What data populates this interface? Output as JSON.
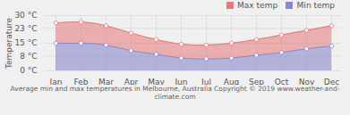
{
  "chart_data": {
    "type": "area",
    "caption": "Average min and max temperatures in Melbourne, Australia   Copyright © 2019 www.weather-and-climate.com",
    "ylabel": "Temperature",
    "categories": [
      "Jan",
      "Feb",
      "Mar",
      "Apr",
      "May",
      "Jun",
      "Jul",
      "Aug",
      "Sep",
      "Oct",
      "Nov",
      "Dec"
    ],
    "series": [
      {
        "name": "Max temp",
        "color": "#e87878",
        "values": [
          26,
          26.5,
          24.5,
          20.5,
          17,
          14.5,
          14,
          15,
          17,
          19.5,
          22,
          24.5
        ]
      },
      {
        "name": "Min temp",
        "color": "#8888cc",
        "values": [
          15,
          15,
          14,
          11,
          9,
          7,
          6.5,
          7,
          8.5,
          10,
          12,
          13.5
        ]
      }
    ],
    "ylim": [
      0,
      30
    ],
    "yticks": [
      {
        "value": 0,
        "label": "0 °C"
      },
      {
        "value": 8,
        "label": "8 °C"
      },
      {
        "value": 15,
        "label": "15 °C"
      },
      {
        "value": 23,
        "label": "23 °C"
      },
      {
        "value": 30,
        "label": "30 °C"
      }
    ],
    "grid": true,
    "legend": "upper right",
    "marker": "circle"
  }
}
